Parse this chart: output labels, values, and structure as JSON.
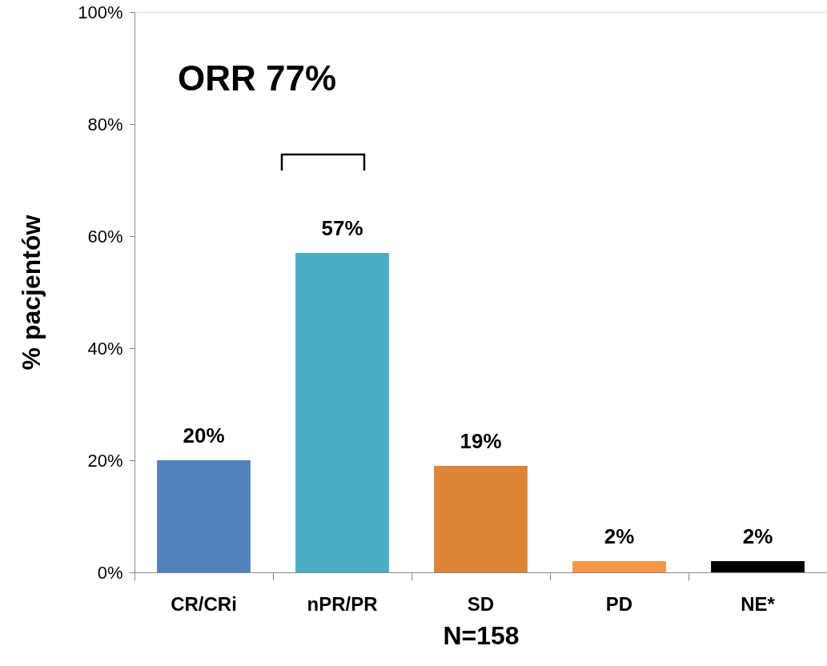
{
  "chart_data": {
    "type": "bar",
    "categories": [
      "CR/CRi",
      "nPR/PR",
      "SD",
      "PD",
      "NE*"
    ],
    "values": [
      20,
      57,
      19,
      2,
      2
    ],
    "colors": [
      "#4f81bd",
      "#4bacc6",
      "#dd8536",
      "#f79646",
      "#000000"
    ],
    "value_labels": [
      "20%",
      "57%",
      "19%",
      "2%",
      "2%"
    ],
    "ylim": [
      0,
      100
    ],
    "yticks": [
      {
        "value": 0,
        "label": "0%"
      },
      {
        "value": 20,
        "label": "20%"
      },
      {
        "value": 40,
        "label": "40%"
      },
      {
        "value": 60,
        "label": "60%"
      },
      {
        "value": 80,
        "label": "80%"
      },
      {
        "value": 100,
        "label": "100%"
      }
    ],
    "ylabel": "% pacjentów",
    "xlabel": "N=158",
    "annotations": [
      "ORR 77%"
    ]
  }
}
